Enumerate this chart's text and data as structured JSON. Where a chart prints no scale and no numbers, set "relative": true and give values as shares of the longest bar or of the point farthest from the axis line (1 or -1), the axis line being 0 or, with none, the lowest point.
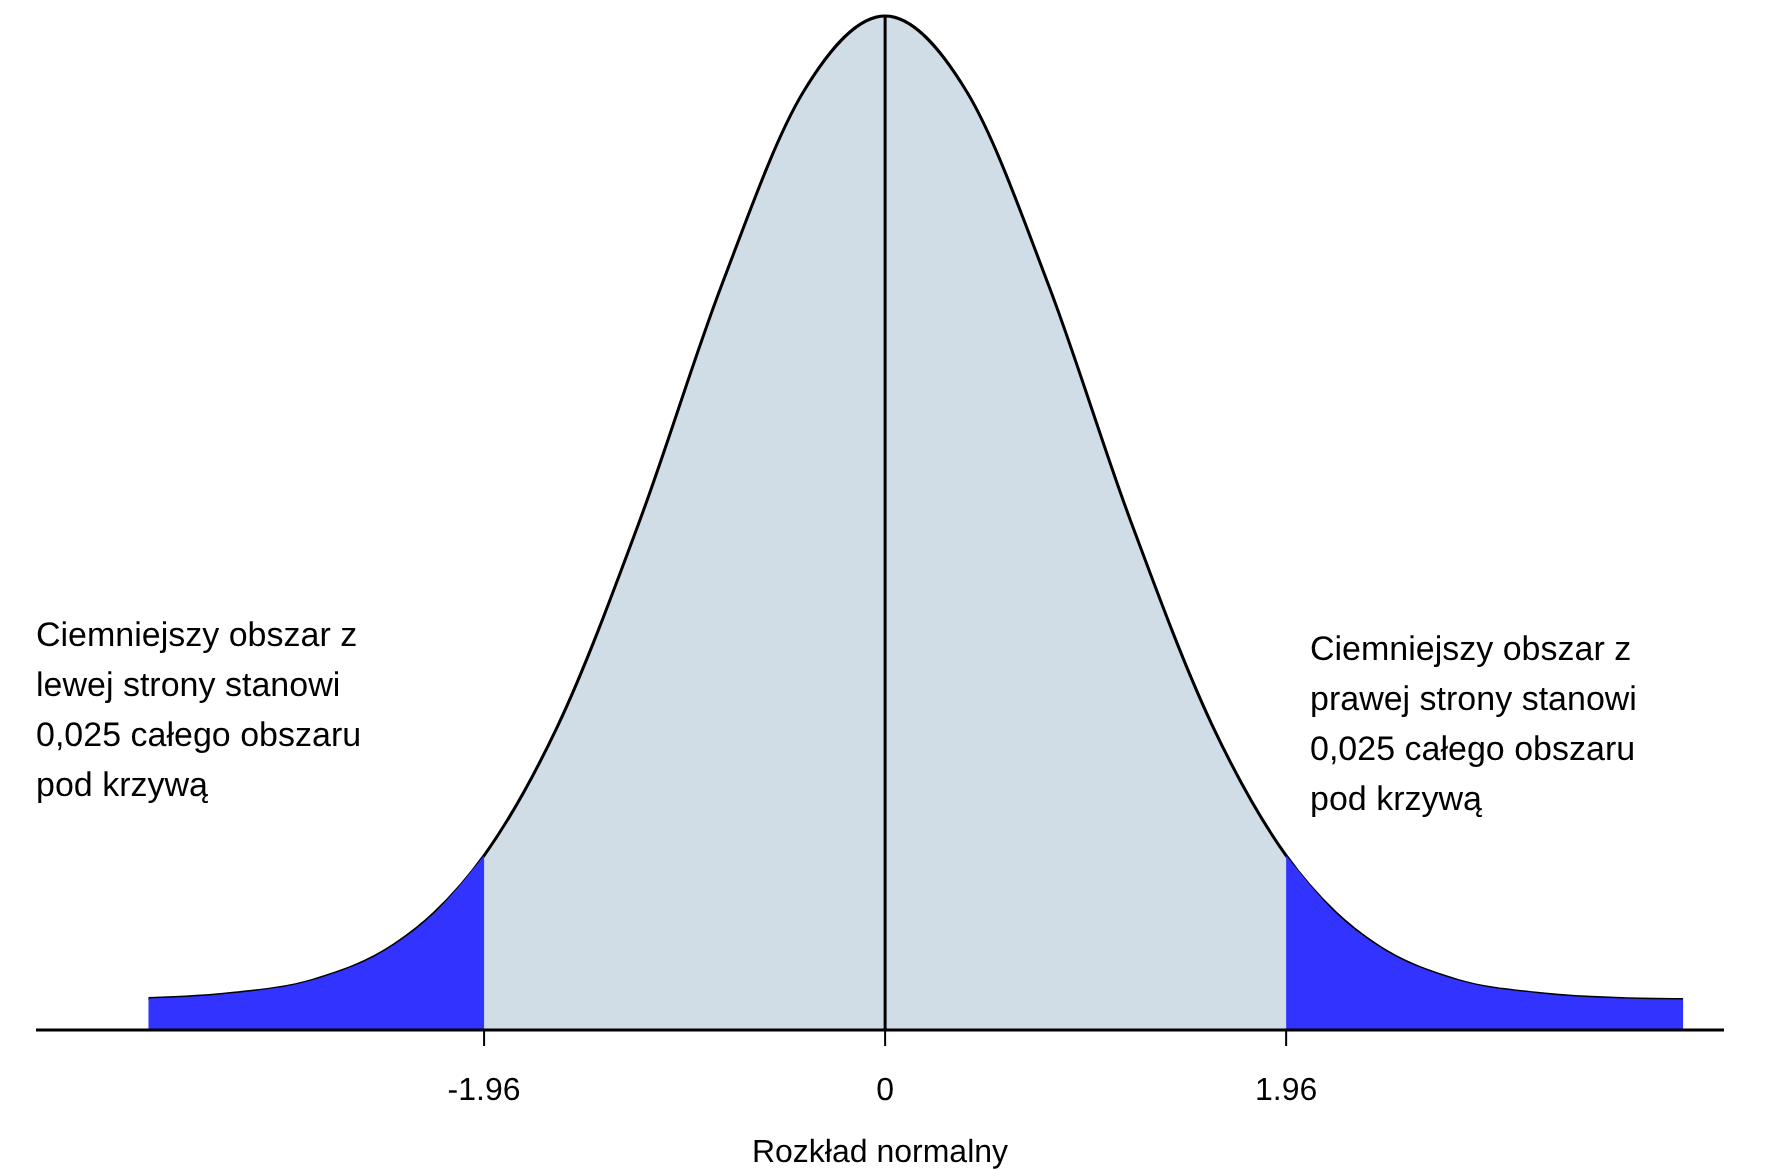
{
  "chart_data": {
    "type": "area",
    "relative": true,
    "xlabel": "Rozkład normalny",
    "xlim": [
      -4.15,
      4.1
    ],
    "xticks": [
      -1.96,
      0,
      1.96
    ],
    "tick_labels": "x",
    "series": [
      {
        "color": "#d0dce6",
        "x": [
          -3.6,
          -3.2,
          -2.8,
          -2.4,
          -2.2,
          -1.96,
          -1.6,
          -1.2,
          -0.8,
          -0.4,
          0,
          0.4,
          0.8,
          1.2,
          1.6,
          1.96,
          2.2,
          2.4,
          2.8,
          3.2,
          3.6,
          3.9
        ],
        "values": [
          0.031,
          0.036,
          0.049,
          0.084,
          0.116,
          0.172,
          0.3,
          0.502,
          0.734,
          0.925,
          1,
          0.925,
          0.734,
          0.502,
          0.3,
          0.172,
          0.116,
          0.084,
          0.049,
          0.036,
          0.031,
          0.03
        ]
      },
      {
        "color": "#3333ff",
        "x": [
          -3.6,
          -3.2,
          -2.8,
          -2.4,
          -2.2,
          -1.96
        ],
        "values": [
          0.031,
          0.036,
          0.049,
          0.084,
          0.116,
          0.172
        ]
      },
      {
        "color": "#3333ff",
        "x": [
          1.96,
          2.2,
          2.4,
          2.8,
          3.2,
          3.6,
          3.9
        ],
        "values": [
          0.172,
          0.116,
          0.084,
          0.049,
          0.036,
          0.031,
          0.03
        ]
      }
    ],
    "ref_lines": [
      {
        "axis": "x",
        "value": 0,
        "color": "#000000"
      }
    ],
    "annotations": [
      "Ciemniejszy obszar z\nlewej strony stanowi\n0,025 całego obszaru\npod krzywą",
      "Ciemniejszy obszar z\nprawej strony stanowi\n0,025 całego obszaru\npod krzywą"
    ]
  }
}
